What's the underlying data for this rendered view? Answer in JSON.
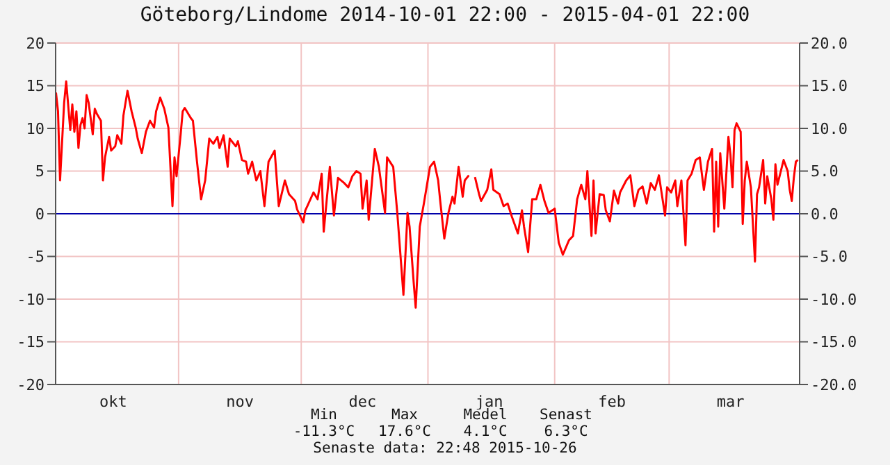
{
  "chart_data": {
    "type": "line",
    "title": "Göteborg/Lindome 2014-10-01 22:00 - 2015-04-01 22:00",
    "x": [
      "2014-10-02T00:00",
      "2014-10-02T12:00",
      "2014-10-03T00:00",
      "2014-10-04T00:00",
      "2014-10-04T12:00",
      "2014-10-05T12:00",
      "2014-10-06T00:00",
      "2014-10-06T12:00",
      "2014-10-07T00:00",
      "2014-10-07T12:00",
      "2014-10-08T00:00",
      "2014-10-08T12:00",
      "2014-10-09T00:00",
      "2014-10-09T12:00",
      "2014-10-10T00:00",
      "2014-10-11T00:00",
      "2014-10-11T12:00",
      "2014-10-12T00:00",
      "2014-10-13T00:00",
      "2014-10-13T12:00",
      "2014-10-14T00:00",
      "2014-10-15T00:00",
      "2014-10-15T12:00",
      "2014-10-16T12:00",
      "2014-10-17T00:00",
      "2014-10-18T00:00",
      "2014-10-18T12:00",
      "2014-10-19T12:00",
      "2014-10-20T12:00",
      "2014-10-21T12:00",
      "2014-10-22T00:00",
      "2014-10-23T00:00",
      "2014-10-24T00:00",
      "2014-10-25T00:00",
      "2014-10-26T00:00",
      "2014-10-26T12:00",
      "2014-10-27T12:00",
      "2014-10-28T12:00",
      "2014-10-29T12:00",
      "2014-10-30T12:00",
      "2014-10-31T00:00",
      "2014-10-31T12:00",
      "2014-11-01T12:00",
      "2014-11-02T00:00",
      "2014-11-02T12:00",
      "2014-11-04T00:00",
      "2014-11-04T12:00",
      "2014-11-05T12:00",
      "2014-11-06T12:00",
      "2014-11-07T12:00",
      "2014-11-08T12:00",
      "2014-11-09T12:00",
      "2014-11-10T12:00",
      "2014-11-11T00:00",
      "2014-11-12T00:00",
      "2014-11-13T00:00",
      "2014-11-13T12:00",
      "2014-11-15T00:00",
      "2014-11-15T12:00",
      "2014-11-16T12:00",
      "2014-11-17T12:00",
      "2014-11-18T00:00",
      "2014-11-19T00:00",
      "2014-11-20T00:00",
      "2014-11-21T00:00",
      "2014-11-22T00:00",
      "2014-11-23T00:00",
      "2014-11-24T12:00",
      "2014-11-25T12:00",
      "2014-11-27T00:00",
      "2014-11-28T00:00",
      "2014-11-29T12:00",
      "2014-11-30T00:00",
      "2014-12-01T12:00",
      "2014-12-02T00:00",
      "2014-12-02T12:00",
      "2014-12-04T00:00",
      "2014-12-05T00:00",
      "2014-12-06T00:00",
      "2014-12-06T12:00",
      "2014-12-08T00:00",
      "2014-12-09T00:00",
      "2014-12-10T00:00",
      "2014-12-11T12:00",
      "2014-12-12T12:00",
      "2014-12-13T12:00",
      "2014-12-14T12:00",
      "2014-12-15T12:00",
      "2014-12-16T00:00",
      "2014-12-17T00:00",
      "2014-12-17T12:00",
      "2014-12-19T00:00",
      "2014-12-20T00:00",
      "2014-12-21T12:00",
      "2014-12-22T00:00",
      "2014-12-23T12:00",
      "2014-12-24T12:00",
      "2014-12-25T00:00",
      "2014-12-26T00:00",
      "2014-12-27T00:00",
      "2014-12-27T12:00",
      "2014-12-28T12:00",
      "2014-12-29T00:00",
      "2014-12-30T00:00",
      "2014-12-31T00:00",
      "2015-01-01T12:00",
      "2015-01-02T12:00",
      "2015-01-03T12:00",
      "2015-01-04T00:00",
      "2015-01-05T00:00",
      "2015-01-06T00:00",
      "2015-01-07T00:00",
      "2015-01-07T12:00",
      "2015-01-08T12:00",
      "2015-01-09T12:00",
      "2015-01-10T00:00",
      "2015-01-11T00:00",
      "2015-01-11T12:00",
      "2015-01-12T12:00",
      "2015-01-13T12:00",
      "2015-01-14T00:00",
      "2015-01-15T12:00",
      "2015-01-16T12:00",
      "2015-01-17T00:00",
      "2015-01-18T12:00",
      "2015-01-19T12:00",
      "2015-01-20T12:00",
      "2015-01-21T12:00",
      "2015-01-23T00:00",
      "2015-01-24T00:00",
      "2015-01-24T12:00",
      "2015-01-25T12:00",
      "2015-01-26T12:00",
      "2015-01-27T12:00",
      "2015-01-28T12:00",
      "2015-01-29T12:00",
      "2015-01-30T12:00",
      "2015-02-01T00:00",
      "2015-02-02T00:00",
      "2015-02-03T00:00",
      "2015-02-04T12:00",
      "2015-02-05T12:00",
      "2015-02-06T12:00",
      "2015-02-07T12:00",
      "2015-02-08T12:00",
      "2015-02-09T00:00",
      "2015-02-10T00:00",
      "2015-02-10T12:00",
      "2015-02-11T00:00",
      "2015-02-12T00:00",
      "2015-02-13T00:00",
      "2015-02-13T12:00",
      "2015-02-14T12:00",
      "2015-02-15T12:00",
      "2015-02-16T12:00",
      "2015-02-17T00:00",
      "2015-02-18T12:00",
      "2015-02-19T12:00",
      "2015-02-20T12:00",
      "2015-02-21T12:00",
      "2015-02-22T12:00",
      "2015-02-23T12:00",
      "2015-02-24T12:00",
      "2015-02-25T12:00",
      "2015-02-26T12:00",
      "2015-02-28T00:00",
      "2015-02-28T12:00",
      "2015-03-01T12:00",
      "2015-03-02T12:00",
      "2015-03-03T00:00",
      "2015-03-04T00:00",
      "2015-03-05T00:00",
      "2015-03-05T12:00",
      "2015-03-06T12:00",
      "2015-03-07T12:00",
      "2015-03-08T12:00",
      "2015-03-09T12:00",
      "2015-03-10T12:00",
      "2015-03-11T12:00",
      "2015-03-12T00:00",
      "2015-03-12T12:00",
      "2015-03-13T00:00",
      "2015-03-13T12:00",
      "2015-03-14T12:00",
      "2015-03-15T12:00",
      "2015-03-16T00:00",
      "2015-03-16T12:00",
      "2015-03-17T00:00",
      "2015-03-17T12:00",
      "2015-03-18T12:00",
      "2015-03-19T00:00",
      "2015-03-19T12:00",
      "2015-03-20T00:00",
      "2015-03-21T00:00",
      "2015-03-22T00:00",
      "2015-03-22T12:00",
      "2015-03-23T00:00",
      "2015-03-24T00:00",
      "2015-03-24T12:00",
      "2015-03-25T00:00",
      "2015-03-26T00:00",
      "2015-03-26T12:00",
      "2015-03-27T00:00",
      "2015-03-27T12:00",
      "2015-03-29T00:00",
      "2015-03-30T00:00",
      "2015-03-30T12:00",
      "2015-03-31T00:00",
      "2015-03-31T12:00",
      "2015-04-01T00:00",
      "2015-04-01T12:00"
    ],
    "series": [
      {
        "color": "#ff0000",
        "values": [
          14.2,
          12,
          3.9,
          13,
          15.5,
          9.8,
          12.8,
          9.6,
          12,
          7.7,
          10.4,
          11.2,
          10,
          13.9,
          13,
          9.3,
          12.3,
          11.7,
          10.9,
          3.9,
          6.6,
          9,
          7.4,
          7.9,
          9.2,
          8.2,
          11.5,
          14.4,
          12,
          10.1,
          8.8,
          7.1,
          9.6,
          10.9,
          10.1,
          12,
          13.6,
          12.3,
          10.1,
          0.9,
          6.6,
          4.4,
          9.3,
          12,
          12.4,
          11.2,
          10.9,
          6.1,
          1.7,
          3.9,
          8.8,
          8.2,
          9,
          7.7,
          9.2,
          5.5,
          8.8,
          7.9,
          8.5,
          6.3,
          6.1,
          4.7,
          6.1,
          3.9,
          5,
          0.9,
          6.1,
          7.4,
          0.9,
          3.9,
          2.3,
          1.5,
          0.5,
          -1,
          0.4,
          0.9,
          2.5,
          1.7,
          4.7,
          -2.1,
          5.5,
          -0.2,
          4.2,
          3.6,
          3.1,
          4.4,
          5,
          4.7,
          0.6,
          3.9,
          -0.7,
          7.6,
          5.5,
          0.1,
          6.6,
          5.5,
          0.1,
          -3.1,
          -9.5,
          0.1,
          -1.5,
          -8,
          -11,
          -1.5,
          1.2,
          5.5,
          6.1,
          3.9,
          1.5,
          -2.9,
          0.1,
          2,
          1.2,
          5.5,
          2,
          3.9,
          4.5,
          null,
          4.3,
          2.3,
          1.5,
          2.8,
          5.2,
          2.8,
          2.3,
          0.9,
          1.2,
          -0.3,
          -2.3,
          0.4,
          -1.5,
          -4.5,
          1.7,
          1.7,
          3.4,
          1.5,
          0.1,
          0.6,
          -3.4,
          -4.8,
          -3.1,
          -2.6,
          1.7,
          3.4,
          1.7,
          5,
          -2.6,
          3.9,
          -2.3,
          2.3,
          2.2,
          0.4,
          -0.9,
          2.7,
          1.2,
          2.5,
          3.9,
          4.5,
          0.9,
          2.8,
          3.2,
          1.2,
          3.6,
          2.8,
          4.5,
          -0.2,
          3.1,
          2.5,
          3.9,
          0.9,
          3.9,
          -3.7,
          3.9,
          4.7,
          6.3,
          6.6,
          2.8,
          6.1,
          7.6,
          -2.1,
          6.1,
          -1.5,
          7.1,
          0.6,
          9,
          6.9,
          3.1,
          9.8,
          10.6,
          9.6,
          -1.2,
          3.9,
          6.1,
          3.1,
          -5.6,
          2.3,
          3.1,
          6.3,
          1.2,
          4.4,
          1.7,
          -0.7,
          5.8,
          3.4,
          6.3,
          5,
          2.8,
          1.5,
          4.2,
          6.1,
          6.3
        ]
      }
    ],
    "xlim": [
      "2014-10-01T22:00",
      "2015-04-01T22:00"
    ],
    "xticks": [
      {
        "value": "2014-10-16",
        "label": "okt"
      },
      {
        "value": "2014-11-01",
        "label": null
      },
      {
        "value": "2014-11-16",
        "label": "nov"
      },
      {
        "value": "2014-12-01",
        "label": null
      },
      {
        "value": "2014-12-16",
        "label": "dec"
      },
      {
        "value": "2015-01-01",
        "label": null
      },
      {
        "value": "2015-01-16",
        "label": "jan"
      },
      {
        "value": "2015-02-01",
        "label": null
      },
      {
        "value": "2015-02-15",
        "label": "feb"
      },
      {
        "value": "2015-03-01",
        "label": null
      },
      {
        "value": "2015-03-16",
        "label": "mar"
      }
    ],
    "ylim": [
      -20,
      20
    ],
    "yticks": [
      -20,
      -15,
      -10,
      -5,
      0,
      5,
      10,
      15,
      20
    ],
    "y2lim": [
      -20,
      20
    ],
    "y2ticks": [
      {
        "value": -20,
        "label": "-20.0"
      },
      {
        "value": -15,
        "label": "-15.0"
      },
      {
        "value": -10,
        "label": "-10.0"
      },
      {
        "value": -5,
        "label": "-5.0"
      },
      {
        "value": 0,
        "label": "0.0"
      },
      {
        "value": 5,
        "label": "5.0"
      },
      {
        "value": 10,
        "label": "10.0"
      },
      {
        "value": 15,
        "label": "15.0"
      },
      {
        "value": 20,
        "label": "20.0"
      }
    ],
    "ref_lines": [
      {
        "axis": "y",
        "value": 0,
        "label": null,
        "color": "#0000aa"
      }
    ],
    "grid": true,
    "marker": "none",
    "line_style": "solid",
    "annotations": [
      "Min",
      "Max",
      "Medel",
      "Senast",
      "-11.3°C",
      "17.6°C",
      "4.1°C",
      "6.3°C",
      "Senaste data: 22:48 2015-10-26"
    ]
  }
}
